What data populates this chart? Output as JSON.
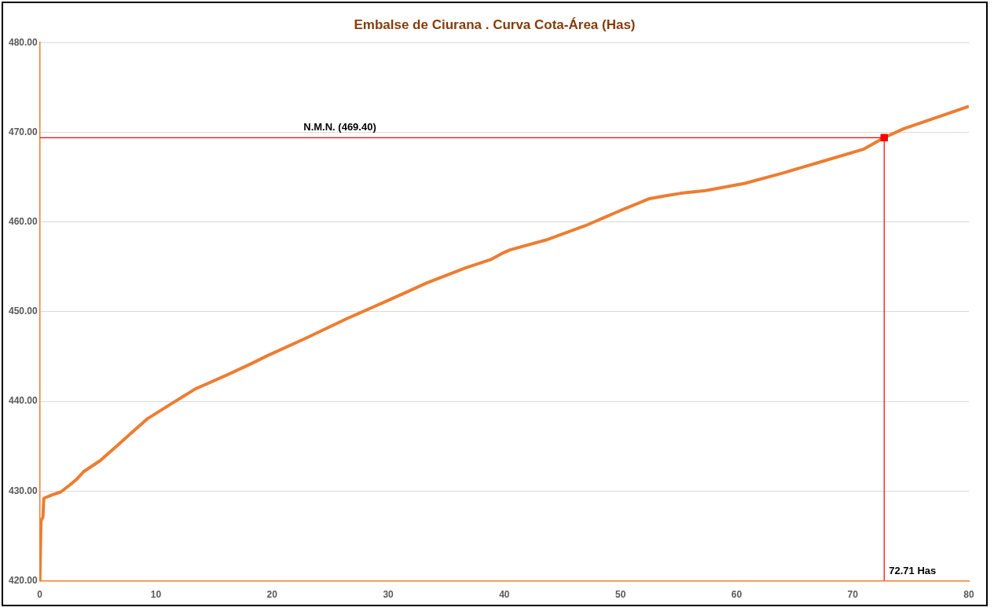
{
  "chart_data": {
    "type": "line",
    "title": "Embalse de Ciurana . Curva Cota-Área (Has)",
    "xlim": [
      0,
      80
    ],
    "xticks": [
      0,
      10,
      20,
      30,
      40,
      50,
      60,
      70,
      80
    ],
    "ylim": [
      420,
      480
    ],
    "yticks": [
      {
        "value": 420,
        "label": "420.00"
      },
      {
        "value": 430,
        "label": "430.00"
      },
      {
        "value": 440,
        "label": "440.00"
      },
      {
        "value": 450,
        "label": "450.00"
      },
      {
        "value": 460,
        "label": "460.00"
      },
      {
        "value": 470,
        "label": "470.00"
      },
      {
        "value": 480,
        "label": "480.00"
      }
    ],
    "grid": "y",
    "legend": false,
    "series": [
      {
        "type": "line",
        "color": "#ff0000",
        "marker": "none",
        "x": [
          0,
          72.71
        ],
        "values": [
          469.4,
          469.4
        ]
      },
      {
        "type": "line",
        "color": "#ff0000",
        "marker": "none",
        "x": [
          72.71,
          72.71
        ],
        "values": [
          420,
          469.4
        ]
      },
      {
        "type": "line",
        "color": "#ed7d31",
        "marker": "none",
        "x": [
          0,
          0.1,
          0.27,
          0.34,
          1.1,
          1.8,
          2.5,
          3.15,
          3.8,
          5.2,
          6.6,
          7.9,
          9.3,
          11.4,
          13.4,
          16.2,
          18.2,
          19.6,
          23.0,
          26.4,
          29.9,
          33.3,
          36.7,
          38.8,
          39.8,
          40.5,
          43.6,
          47.0,
          50.4,
          52.5,
          53.8,
          55.2,
          57.3,
          60.7,
          64.1,
          67.5,
          70.9,
          72.71,
          74.4,
          77.8,
          80
        ],
        "values": [
          420,
          426.7,
          427.1,
          429.2,
          429.6,
          429.9,
          430.6,
          431.3,
          432.2,
          433.4,
          435.0,
          436.5,
          438.1,
          439.8,
          441.4,
          443.0,
          444.2,
          445.1,
          447.1,
          449.2,
          451.2,
          453.2,
          454.9,
          455.8,
          456.5,
          456.9,
          458.0,
          459.6,
          461.5,
          462.6,
          462.9,
          463.2,
          463.5,
          464.3,
          465.5,
          466.8,
          468.1,
          469.4,
          470.4,
          471.9,
          472.9
        ]
      },
      {
        "type": "scatter",
        "color": "#ff0000",
        "marker": "square",
        "x": [
          72.71
        ],
        "values": [
          469.4
        ]
      }
    ],
    "annotations": [
      {
        "text": "N.M.N. (469.40)",
        "x": 22.3,
        "y": 469.4
      },
      {
        "text": "72.71 Has",
        "x": 72.71,
        "y": 420
      }
    ]
  }
}
